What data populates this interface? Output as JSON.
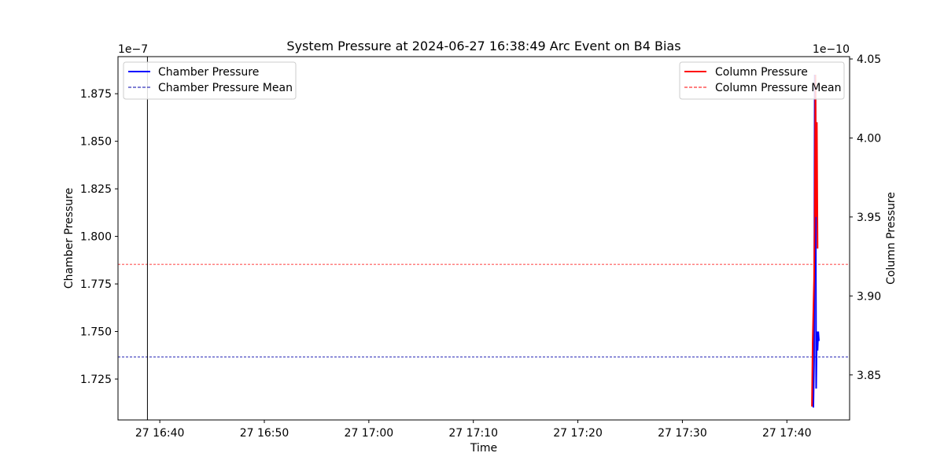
{
  "chart_data": {
    "type": "line",
    "title": "System Pressure at 2024-06-27 16:38:49 Arc Event on B4 Bias",
    "xlabel": "Time",
    "ylabel_left": "Chamber Pressure",
    "ylabel_right": "Column Pressure",
    "left_offset": "1e−7",
    "right_offset": "1e−10",
    "xlim": [
      "2024-06-27 16:36:00",
      "2024-06-27 17:46:00"
    ],
    "ylim_left": [
      1.7035,
      1.8945
    ],
    "ylim_right": [
      3.8215,
      4.0515
    ],
    "x_ticks": [
      {
        "t": "2024-06-27 16:40:00",
        "label": "27 16:40"
      },
      {
        "t": "2024-06-27 16:50:00",
        "label": "27 16:50"
      },
      {
        "t": "2024-06-27 17:00:00",
        "label": "27 17:00"
      },
      {
        "t": "2024-06-27 17:10:00",
        "label": "27 17:10"
      },
      {
        "t": "2024-06-27 17:20:00",
        "label": "27 17:20"
      },
      {
        "t": "2024-06-27 17:30:00",
        "label": "27 17:30"
      },
      {
        "t": "2024-06-27 17:40:00",
        "label": "27 17:40"
      }
    ],
    "y_ticks_left": [
      {
        "v": 1.725,
        "label": "1.725"
      },
      {
        "v": 1.75,
        "label": "1.750"
      },
      {
        "v": 1.775,
        "label": "1.775"
      },
      {
        "v": 1.8,
        "label": "1.800"
      },
      {
        "v": 1.825,
        "label": "1.825"
      },
      {
        "v": 1.85,
        "label": "1.850"
      },
      {
        "v": 1.875,
        "label": "1.875"
      }
    ],
    "y_ticks_right": [
      {
        "v": 3.85,
        "label": "3.85"
      },
      {
        "v": 3.9,
        "label": "3.90"
      },
      {
        "v": 3.95,
        "label": "3.95"
      },
      {
        "v": 4.0,
        "label": "4.00"
      },
      {
        "v": 4.05,
        "label": "4.05"
      }
    ],
    "event_time": "2024-06-27 16:38:49",
    "series": [
      {
        "name": "Chamber Pressure",
        "axis": "left",
        "color": "#0000ff",
        "style": "solid",
        "x": [
          "2024-06-27 17:42:32",
          "2024-06-27 17:42:36",
          "2024-06-27 17:42:40",
          "2024-06-27 17:42:44",
          "2024-06-27 17:42:48",
          "2024-06-27 17:42:52",
          "2024-06-27 17:42:56",
          "2024-06-27 17:43:00",
          "2024-06-27 17:43:04"
        ],
        "values": [
          1.71,
          1.735,
          1.885,
          1.875,
          1.72,
          1.75,
          1.74,
          1.75,
          1.745
        ]
      },
      {
        "name": "Chamber Pressure Mean",
        "axis": "left",
        "color": "#0000aa",
        "style": "dashed",
        "mean": 1.7366
      },
      {
        "name": "Column Pressure",
        "axis": "right",
        "color": "#ff0000",
        "style": "solid",
        "x": [
          "2024-06-27 17:42:24",
          "2024-06-27 17:42:28",
          "2024-06-27 17:42:32",
          "2024-06-27 17:42:36",
          "2024-06-27 17:42:40",
          "2024-06-27 17:42:44",
          "2024-06-27 17:42:48",
          "2024-06-27 17:42:52",
          "2024-06-27 17:42:56"
        ],
        "values": [
          3.83,
          3.87,
          3.89,
          3.91,
          3.95,
          4.04,
          3.95,
          4.01,
          3.93
        ]
      },
      {
        "name": "Column Pressure Mean",
        "axis": "right",
        "color": "#ff0000",
        "style": "dashed",
        "mean": 3.92
      }
    ],
    "grid": false,
    "legend_left": "top-left",
    "legend_right": "top-right"
  }
}
